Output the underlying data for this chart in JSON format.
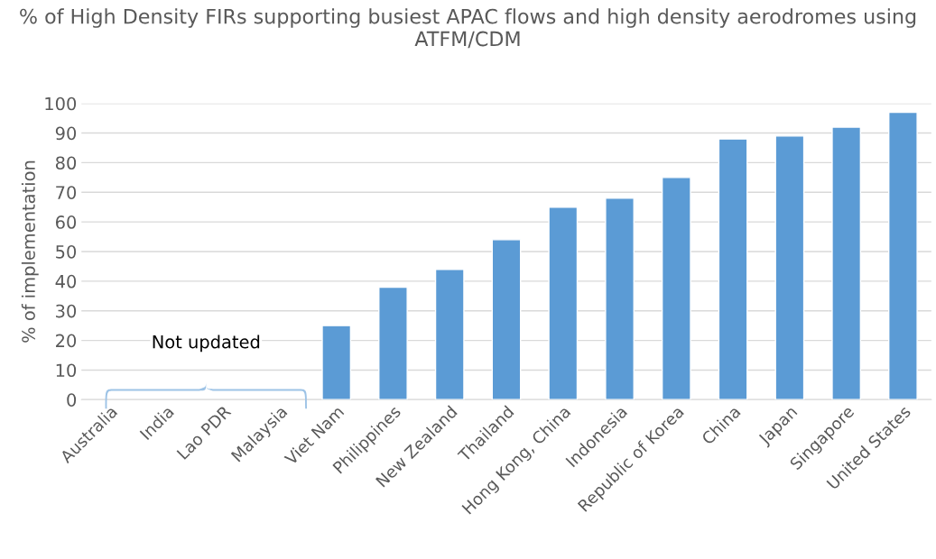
{
  "chart_data": {
    "type": "bar",
    "title": "% of High Density FIRs supporting busiest APAC flows and high density aerodromes using ATFM/CDM",
    "ylabel": "% of implementation",
    "categories": [
      "Australia",
      "India",
      "Lao PDR",
      "Malaysia",
      "Viet Nam",
      "Philippines",
      "New Zealand",
      "Thailand",
      "Hong Kong, China",
      "Indonesia",
      "Republic of Korea",
      "China",
      "Japan",
      "Singapore",
      "United States"
    ],
    "values": [
      null,
      null,
      null,
      null,
      25,
      38,
      44,
      54,
      65,
      68,
      75,
      88,
      89,
      92,
      97
    ],
    "color": "#5b9bd5",
    "ylim": [
      0,
      100
    ],
    "yticks": [
      0,
      10,
      20,
      30,
      40,
      50,
      60,
      70,
      80,
      90,
      100
    ],
    "grid": "y",
    "annotations": [
      "Not updated"
    ]
  }
}
